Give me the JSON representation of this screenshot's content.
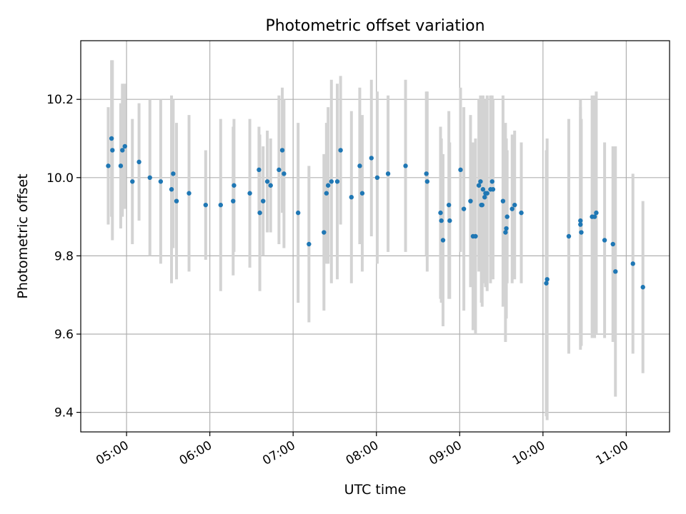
{
  "chart_data": {
    "type": "scatter",
    "title": "Photometric offset variation",
    "xlabel": "UTC time",
    "ylabel": "Photometric offset",
    "grid": true,
    "xlim": [
      4.45,
      11.52
    ],
    "ylim": [
      9.35,
      10.35
    ],
    "xticks": [
      5,
      6,
      7,
      8,
      9,
      10,
      11
    ],
    "xtick_labels": [
      "05:00",
      "06:00",
      "07:00",
      "08:00",
      "09:00",
      "10:00",
      "11:00"
    ],
    "yticks": [
      9.4,
      9.6,
      9.8,
      10.0,
      10.2
    ],
    "ytick_labels": [
      "9.4",
      "9.6",
      "9.8",
      "10.0",
      "10.2"
    ],
    "colors": {
      "points": "#1f77b4",
      "errorbars": "#d3d3d3",
      "grid": "#b0b0b0"
    },
    "series": [
      {
        "name": "offset",
        "x": [
          4.78,
          4.82,
          4.83,
          4.93,
          4.95,
          4.98,
          5.07,
          5.15,
          5.28,
          5.41,
          5.54,
          5.56,
          5.6,
          5.75,
          5.95,
          6.13,
          6.28,
          6.29,
          6.48,
          6.59,
          6.6,
          6.64,
          6.69,
          6.73,
          6.83,
          6.87,
          6.89,
          7.06,
          7.19,
          7.37,
          7.4,
          7.42,
          7.46,
          7.53,
          7.57,
          7.7,
          7.8,
          7.83,
          7.94,
          8.01,
          8.14,
          8.35,
          8.6,
          8.61,
          8.77,
          8.78,
          8.8,
          8.87,
          8.88,
          9.01,
          9.05,
          9.13,
          9.16,
          9.19,
          9.23,
          9.25,
          9.26,
          9.27,
          9.28,
          9.3,
          9.31,
          9.33,
          9.37,
          9.39,
          9.4,
          9.52,
          9.55,
          9.56,
          9.57,
          9.63,
          9.66,
          9.74,
          10.04,
          10.05,
          10.31,
          10.45,
          10.45,
          10.46,
          10.59,
          10.62,
          10.64,
          10.74,
          10.84,
          10.87,
          11.08,
          11.2
        ],
        "y": [
          10.03,
          10.1,
          10.07,
          10.03,
          10.07,
          10.08,
          9.99,
          10.04,
          10.0,
          9.99,
          9.97,
          10.01,
          9.94,
          9.96,
          9.93,
          9.93,
          9.94,
          9.98,
          9.96,
          10.02,
          9.91,
          9.94,
          9.99,
          9.98,
          10.02,
          10.07,
          10.01,
          9.91,
          9.83,
          9.86,
          9.96,
          9.98,
          9.99,
          9.99,
          10.07,
          9.95,
          10.03,
          9.96,
          10.05,
          10.0,
          10.01,
          10.03,
          10.01,
          9.99,
          9.91,
          9.89,
          9.84,
          9.93,
          9.89,
          10.02,
          9.92,
          9.94,
          9.85,
          9.85,
          9.98,
          9.99,
          9.93,
          9.93,
          9.97,
          9.95,
          9.96,
          9.96,
          9.97,
          9.99,
          9.97,
          9.94,
          9.86,
          9.87,
          9.9,
          9.92,
          9.93,
          9.91,
          9.73,
          9.74,
          9.85,
          9.89,
          9.88,
          9.86,
          9.9,
          9.9,
          9.91,
          9.84,
          9.83,
          9.76,
          9.78,
          9.72
        ],
        "yerr": [
          0.15,
          0.2,
          0.23,
          0.16,
          0.17,
          0.16,
          0.16,
          0.15,
          0.2,
          0.21,
          0.24,
          0.19,
          0.2,
          0.2,
          0.14,
          0.22,
          0.19,
          0.17,
          0.19,
          0.11,
          0.2,
          0.14,
          0.13,
          0.12,
          0.19,
          0.16,
          0.19,
          0.23,
          0.2,
          0.2,
          0.18,
          0.2,
          0.26,
          0.25,
          0.19,
          0.22,
          0.2,
          0.2,
          0.2,
          0.22,
          0.2,
          0.22,
          0.21,
          0.23,
          0.22,
          0.21,
          0.22,
          0.24,
          0.2,
          0.21,
          0.26,
          0.22,
          0.24,
          0.25,
          0.22,
          0.22,
          0.25,
          0.26,
          0.24,
          0.21,
          0.24,
          0.25,
          0.24,
          0.22,
          0.23,
          0.27,
          0.28,
          0.23,
          0.17,
          0.19,
          0.19,
          0.18,
          0.34,
          0.36,
          0.3,
          0.29,
          0.32,
          0.29,
          0.31,
          0.31,
          0.31,
          0.25,
          0.25,
          0.32,
          0.23,
          0.22
        ]
      }
    ]
  }
}
